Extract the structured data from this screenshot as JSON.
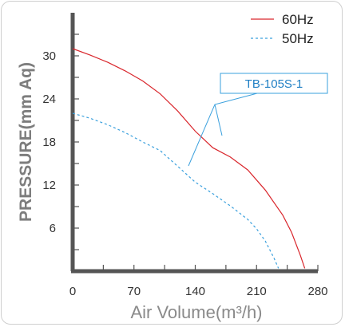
{
  "chart_data": {
    "type": "line",
    "title": "",
    "xlabel": "Air Volume(m³/h)",
    "ylabel": "PRESSURE(mm Aq)",
    "xlim": [
      0,
      280
    ],
    "ylim": [
      0,
      36
    ],
    "x_ticks": [
      0,
      70,
      140,
      210,
      280
    ],
    "y_ticks": [
      6,
      12,
      18,
      24,
      30
    ],
    "x_tick_labels": [
      "0",
      "70",
      "140",
      "210",
      "280"
    ],
    "y_tick_labels": [
      "6",
      "12",
      "18",
      "24",
      "30"
    ],
    "grid": false,
    "legend_position": "top-right",
    "series": [
      {
        "name": "60Hz",
        "color": "#d9262c",
        "style": "solid",
        "x": [
          0,
          20,
          40,
          60,
          80,
          100,
          120,
          140,
          160,
          180,
          200,
          220,
          240,
          250,
          260,
          265
        ],
        "y": [
          31,
          30.1,
          29.1,
          27.9,
          26.5,
          24.7,
          22.3,
          19.5,
          17.2,
          15.9,
          14.1,
          11.3,
          7.8,
          5.4,
          2.2,
          0.4
        ]
      },
      {
        "name": "50Hz",
        "color": "#3aa0dd",
        "style": "dashed",
        "x": [
          0,
          20,
          40,
          60,
          80,
          100,
          120,
          140,
          160,
          180,
          200,
          210,
          220,
          230,
          235
        ],
        "y": [
          22,
          21.3,
          20.4,
          19.3,
          18,
          16.8,
          14.6,
          12.4,
          10.8,
          9.1,
          7.2,
          5.9,
          4.2,
          1.8,
          0.4
        ]
      }
    ],
    "annotations": [
      {
        "text": "TB-105S-1",
        "points_to": [
          [
            128,
            14.5
          ],
          [
            160,
            17.4
          ]
        ]
      }
    ]
  }
}
